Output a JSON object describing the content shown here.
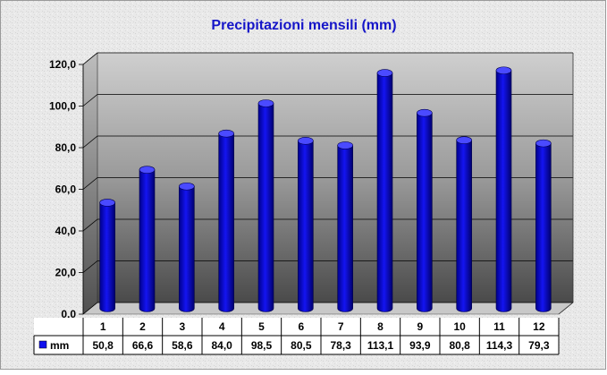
{
  "chart_data": {
    "type": "bar",
    "title": "Precipitazioni mensili (mm)",
    "categories": [
      "1",
      "2",
      "3",
      "4",
      "5",
      "6",
      "7",
      "8",
      "9",
      "10",
      "11",
      "12"
    ],
    "series": [
      {
        "name": "mm",
        "values": [
          50.8,
          66.6,
          58.6,
          84.0,
          98.5,
          80.5,
          78.3,
          113.1,
          93.9,
          80.8,
          114.3,
          79.3
        ],
        "labels": [
          "50,8",
          "66,6",
          "58,6",
          "84,0",
          "98,5",
          "80,5",
          "78,3",
          "113,1",
          "93,9",
          "80,8",
          "114,3",
          "79,3"
        ],
        "color": "#1010ee"
      }
    ],
    "yticks": [
      "0,0",
      "20,0",
      "40,0",
      "60,0",
      "80,0",
      "100,0",
      "120,0"
    ],
    "ylim": [
      0,
      120
    ],
    "grid": true,
    "legend": "data-table",
    "colors": {
      "title": "#1515c8",
      "bar": "#1010ee",
      "bar_dark": "#00008a",
      "bar_top": "#4a4aff"
    }
  }
}
